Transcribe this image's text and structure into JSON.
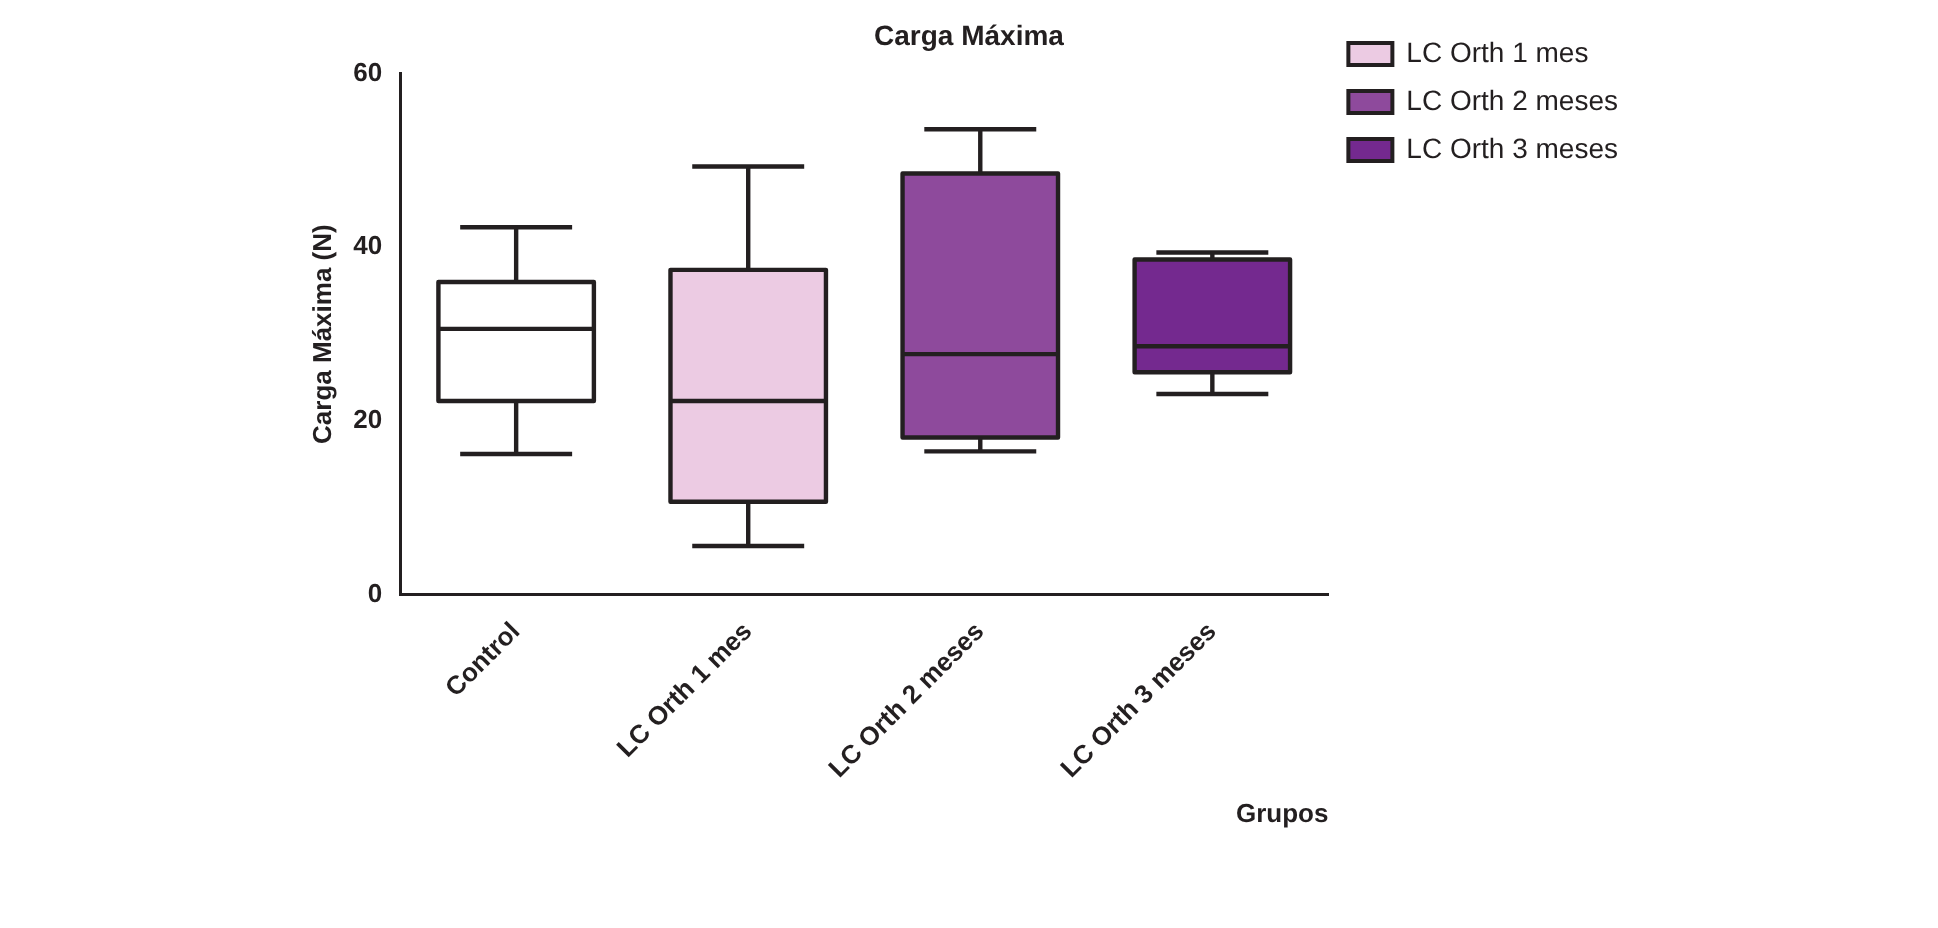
{
  "chart_data": {
    "type": "box",
    "title": "Carga Máxima",
    "xlabel": "Grupos",
    "ylabel": "Carga Máxima (N)",
    "categories": [
      "Control",
      "LC Orth 1 mes",
      "LC Orth 2 meses",
      "LC Orth 3 meses"
    ],
    "series": [
      {
        "color": "#ffffff",
        "boxes": [
          {
            "low": 16.2,
            "q1": 22.3,
            "median": 30.6,
            "q3": 36.0,
            "high": 42.3
          },
          null,
          null,
          null
        ]
      },
      {
        "name": "LC Orth 1 mes",
        "color": "#eccbe3",
        "boxes": [
          null,
          {
            "low": 5.6,
            "q1": 10.7,
            "median": 22.3,
            "q3": 37.4,
            "high": 49.3
          },
          null,
          null
        ]
      },
      {
        "name": "LC Orth 2 meses",
        "color": "#8e4a9c",
        "boxes": [
          null,
          null,
          {
            "low": 16.5,
            "q1": 18.1,
            "median": 27.7,
            "q3": 48.5,
            "high": 53.6
          },
          null
        ]
      },
      {
        "name": "LC Orth 3 meses",
        "color": "#74298f",
        "boxes": [
          null,
          null,
          null,
          {
            "low": 23.1,
            "q1": 25.6,
            "median": 28.6,
            "q3": 38.6,
            "high": 39.4
          }
        ]
      }
    ],
    "ylim": [
      0,
      60
    ],
    "yticks": [
      0,
      20,
      40,
      60
    ],
    "grid": false,
    "legend": "right"
  }
}
